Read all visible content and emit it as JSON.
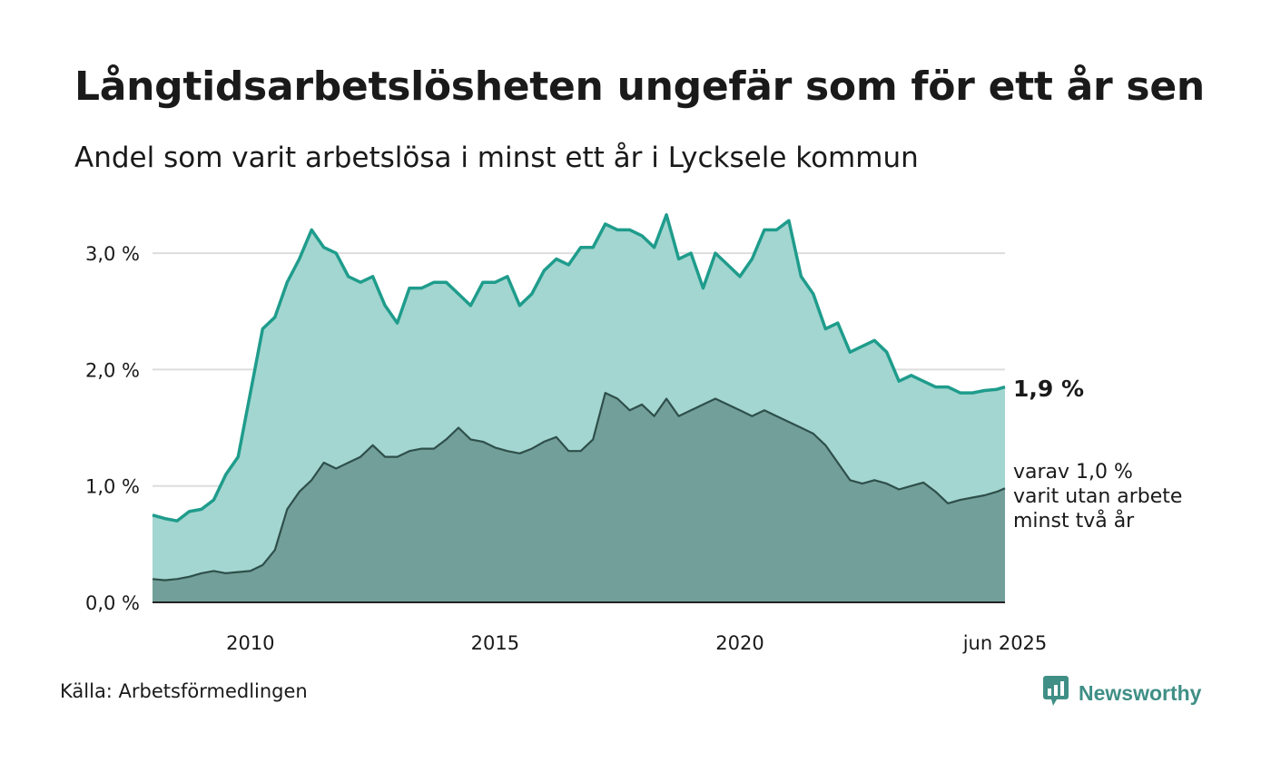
{
  "title": "Långtidsarbetslösheten ungefär som för ett år sen",
  "subtitle": "Andel som varit arbetslösa i minst ett år i Lycksele kommun",
  "source": "Källa: Arbetsförmedlingen",
  "brand": {
    "name": "Newsworthy",
    "icon": "newsworthy-logo-icon"
  },
  "colors": {
    "upper_line": "#1f9c8c",
    "upper_fill": "#a3d6d0",
    "lower_line": "#2f4f4b",
    "lower_fill": "#729f99",
    "grid": "#dddddd"
  },
  "end_labels": {
    "total": "1,9 %",
    "sub_line1": "varav 1,0 %",
    "sub_line2": "varit utan arbete",
    "sub_line3": "minst två år"
  },
  "chart_data": {
    "type": "area",
    "title": "Långtidsarbetslösheten ungefär som för ett år sen",
    "subtitle": "Andel som varit arbetslösa i minst ett år i Lycksele kommun",
    "ylim": [
      0,
      3.3
    ],
    "yticks": [
      0,
      1,
      2,
      3
    ],
    "ytick_labels": [
      "0,0 %",
      "1,0 %",
      "2,0 %",
      "3,0 %"
    ],
    "xlim": [
      "2008-01",
      "2025-06"
    ],
    "xticks": [
      "2010-01",
      "2015-01",
      "2020-01",
      "2025-06"
    ],
    "xtick_labels": [
      "2010",
      "2015",
      "2020",
      "jun 2025"
    ],
    "grid": true,
    "series": [
      {
        "name": "minst ett år",
        "points": [
          [
            "2008-01",
            0.75
          ],
          [
            "2008-04",
            0.72
          ],
          [
            "2008-07",
            0.7
          ],
          [
            "2008-10",
            0.78
          ],
          [
            "2009-01",
            0.8
          ],
          [
            "2009-04",
            0.88
          ],
          [
            "2009-07",
            1.1
          ],
          [
            "2009-10",
            1.25
          ],
          [
            "2010-01",
            1.8
          ],
          [
            "2010-04",
            2.35
          ],
          [
            "2010-07",
            2.45
          ],
          [
            "2010-10",
            2.75
          ],
          [
            "2011-01",
            2.95
          ],
          [
            "2011-04",
            3.2
          ],
          [
            "2011-07",
            3.05
          ],
          [
            "2011-10",
            3.0
          ],
          [
            "2012-01",
            2.8
          ],
          [
            "2012-04",
            2.75
          ],
          [
            "2012-07",
            2.8
          ],
          [
            "2012-10",
            2.55
          ],
          [
            "2013-01",
            2.4
          ],
          [
            "2013-04",
            2.7
          ],
          [
            "2013-07",
            2.7
          ],
          [
            "2013-10",
            2.75
          ],
          [
            "2014-01",
            2.75
          ],
          [
            "2014-04",
            2.65
          ],
          [
            "2014-07",
            2.55
          ],
          [
            "2014-10",
            2.75
          ],
          [
            "2015-01",
            2.75
          ],
          [
            "2015-04",
            2.8
          ],
          [
            "2015-07",
            2.55
          ],
          [
            "2015-10",
            2.65
          ],
          [
            "2016-01",
            2.85
          ],
          [
            "2016-04",
            2.95
          ],
          [
            "2016-07",
            2.9
          ],
          [
            "2016-10",
            3.05
          ],
          [
            "2017-01",
            3.05
          ],
          [
            "2017-04",
            3.25
          ],
          [
            "2017-07",
            3.2
          ],
          [
            "2017-10",
            3.2
          ],
          [
            "2018-01",
            3.15
          ],
          [
            "2018-04",
            3.05
          ],
          [
            "2018-07",
            3.33
          ],
          [
            "2018-10",
            2.95
          ],
          [
            "2019-01",
            3.0
          ],
          [
            "2019-04",
            2.7
          ],
          [
            "2019-07",
            3.0
          ],
          [
            "2019-10",
            2.9
          ],
          [
            "2020-01",
            2.8
          ],
          [
            "2020-04",
            2.95
          ],
          [
            "2020-07",
            3.2
          ],
          [
            "2020-10",
            3.2
          ],
          [
            "2021-01",
            3.28
          ],
          [
            "2021-04",
            2.8
          ],
          [
            "2021-07",
            2.65
          ],
          [
            "2021-10",
            2.35
          ],
          [
            "2022-01",
            2.4
          ],
          [
            "2022-04",
            2.15
          ],
          [
            "2022-07",
            2.2
          ],
          [
            "2022-10",
            2.25
          ],
          [
            "2023-01",
            2.15
          ],
          [
            "2023-04",
            1.9
          ],
          [
            "2023-07",
            1.95
          ],
          [
            "2023-10",
            1.9
          ],
          [
            "2024-01",
            1.85
          ],
          [
            "2024-04",
            1.85
          ],
          [
            "2024-07",
            1.8
          ],
          [
            "2024-10",
            1.8
          ],
          [
            "2025-01",
            1.82
          ],
          [
            "2025-04",
            1.83
          ],
          [
            "2025-06",
            1.85
          ]
        ]
      },
      {
        "name": "minst två år",
        "points": [
          [
            "2008-01",
            0.2
          ],
          [
            "2008-04",
            0.19
          ],
          [
            "2008-07",
            0.2
          ],
          [
            "2008-10",
            0.22
          ],
          [
            "2009-01",
            0.25
          ],
          [
            "2009-04",
            0.27
          ],
          [
            "2009-07",
            0.25
          ],
          [
            "2009-10",
            0.26
          ],
          [
            "2010-01",
            0.27
          ],
          [
            "2010-04",
            0.32
          ],
          [
            "2010-07",
            0.45
          ],
          [
            "2010-10",
            0.8
          ],
          [
            "2011-01",
            0.95
          ],
          [
            "2011-04",
            1.05
          ],
          [
            "2011-07",
            1.2
          ],
          [
            "2011-10",
            1.15
          ],
          [
            "2012-01",
            1.2
          ],
          [
            "2012-04",
            1.25
          ],
          [
            "2012-07",
            1.35
          ],
          [
            "2012-10",
            1.25
          ],
          [
            "2013-01",
            1.25
          ],
          [
            "2013-04",
            1.3
          ],
          [
            "2013-07",
            1.32
          ],
          [
            "2013-10",
            1.32
          ],
          [
            "2014-01",
            1.4
          ],
          [
            "2014-04",
            1.5
          ],
          [
            "2014-07",
            1.4
          ],
          [
            "2014-10",
            1.38
          ],
          [
            "2015-01",
            1.33
          ],
          [
            "2015-04",
            1.3
          ],
          [
            "2015-07",
            1.28
          ],
          [
            "2015-10",
            1.32
          ],
          [
            "2016-01",
            1.38
          ],
          [
            "2016-04",
            1.42
          ],
          [
            "2016-07",
            1.3
          ],
          [
            "2016-10",
            1.3
          ],
          [
            "2017-01",
            1.4
          ],
          [
            "2017-04",
            1.8
          ],
          [
            "2017-07",
            1.75
          ],
          [
            "2017-10",
            1.65
          ],
          [
            "2018-01",
            1.7
          ],
          [
            "2018-04",
            1.6
          ],
          [
            "2018-07",
            1.75
          ],
          [
            "2018-10",
            1.6
          ],
          [
            "2019-01",
            1.65
          ],
          [
            "2019-04",
            1.7
          ],
          [
            "2019-07",
            1.75
          ],
          [
            "2019-10",
            1.7
          ],
          [
            "2020-01",
            1.65
          ],
          [
            "2020-04",
            1.6
          ],
          [
            "2020-07",
            1.65
          ],
          [
            "2020-10",
            1.6
          ],
          [
            "2021-01",
            1.55
          ],
          [
            "2021-04",
            1.5
          ],
          [
            "2021-07",
            1.45
          ],
          [
            "2021-10",
            1.35
          ],
          [
            "2022-01",
            1.2
          ],
          [
            "2022-04",
            1.05
          ],
          [
            "2022-07",
            1.02
          ],
          [
            "2022-10",
            1.05
          ],
          [
            "2023-01",
            1.02
          ],
          [
            "2023-04",
            0.97
          ],
          [
            "2023-07",
            1.0
          ],
          [
            "2023-10",
            1.03
          ],
          [
            "2024-01",
            0.95
          ],
          [
            "2024-04",
            0.85
          ],
          [
            "2024-07",
            0.88
          ],
          [
            "2024-10",
            0.9
          ],
          [
            "2025-01",
            0.92
          ],
          [
            "2025-04",
            0.95
          ],
          [
            "2025-06",
            0.98
          ]
        ]
      }
    ]
  }
}
